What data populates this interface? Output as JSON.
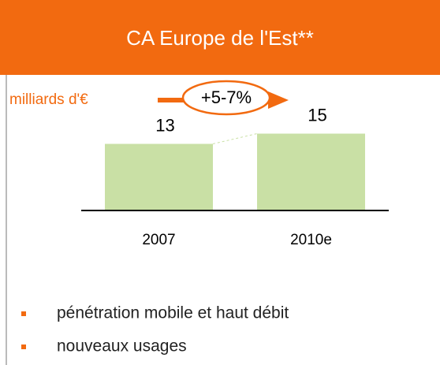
{
  "chart_data": {
    "type": "bar",
    "title": "CA Europe de l'Est**",
    "ylabel": "milliards d'€",
    "annotation": "+5-7%",
    "categories": [
      "2007",
      "2010e"
    ],
    "values": [
      13,
      15
    ],
    "color": "#c9e0a5",
    "accent": "#f26a10",
    "ylim": [
      0,
      20
    ],
    "bullets": [
      "pénétration mobile et haut débit",
      "nouveaux usages"
    ]
  }
}
